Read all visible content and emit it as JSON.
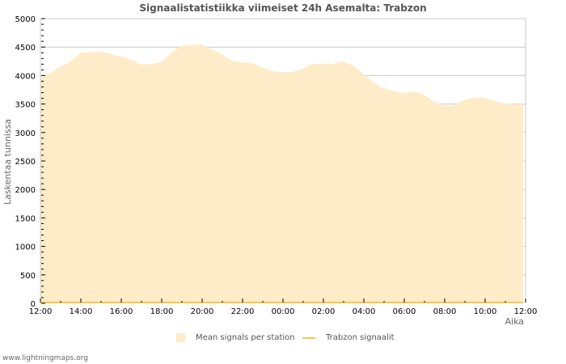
{
  "title": "Signaalistatistiikka viimeiset 24h Asemalta: Trabzon",
  "footer": "www.lightningmaps.org",
  "colors": {
    "area_fill": "#feebc8",
    "station_line": "#f2c94c",
    "grid": "#c8c8c8",
    "axis": "#c8c8c8"
  },
  "legend": [
    {
      "label": "Mean signals per station",
      "type": "area"
    },
    {
      "label": "Trabzon signaalit",
      "type": "line"
    }
  ],
  "chart_data": {
    "type": "area",
    "title": "Signaalistatistiikka viimeiset 24h Asemalta: Trabzon",
    "xlabel": "Aika",
    "ylabel": "Laskentaa tunnissa",
    "ylim": [
      0,
      5000
    ],
    "yticks": [
      0,
      500,
      1000,
      1500,
      2000,
      2500,
      3000,
      3500,
      4000,
      4500,
      5000
    ],
    "xticks": [
      "12:00",
      "14:00",
      "16:00",
      "18:00",
      "20:00",
      "22:00",
      "00:00",
      "02:00",
      "04:00",
      "06:00",
      "08:00",
      "10:00",
      "12:00"
    ],
    "grid": true,
    "legend_position": "bottom",
    "x": [
      "12:00",
      "12:30",
      "13:00",
      "13:30",
      "14:00",
      "14:30",
      "15:00",
      "15:30",
      "16:00",
      "16:30",
      "17:00",
      "17:30",
      "18:00",
      "18:30",
      "19:00",
      "19:30",
      "20:00",
      "20:30",
      "21:00",
      "21:30",
      "22:00",
      "22:30",
      "23:00",
      "23:30",
      "00:00",
      "00:30",
      "01:00",
      "01:30",
      "02:00",
      "02:30",
      "03:00",
      "03:30",
      "04:00",
      "04:30",
      "05:00",
      "05:30",
      "06:00",
      "06:30",
      "07:00",
      "07:30",
      "08:00",
      "08:30",
      "09:00",
      "09:30",
      "10:00",
      "10:30",
      "11:00",
      "11:30",
      "12:00"
    ],
    "series": [
      {
        "name": "Mean signals per station",
        "type": "area",
        "values": [
          3960,
          4050,
          4150,
          4250,
          4400,
          4410,
          4420,
          4380,
          4330,
          4280,
          4190,
          4200,
          4240,
          4400,
          4520,
          4530,
          4550,
          4460,
          4380,
          4260,
          4230,
          4220,
          4150,
          4080,
          4060,
          4060,
          4120,
          4200,
          4210,
          4200,
          4250,
          4180,
          4050,
          3900,
          3780,
          3740,
          3690,
          3720,
          3680,
          3560,
          3480,
          3470,
          3560,
          3610,
          3620,
          3560,
          3510,
          3500,
          3500
        ]
      },
      {
        "name": "Trabzon signaalit",
        "type": "line",
        "values": [
          0,
          0,
          0,
          0,
          0,
          0,
          0,
          0,
          0,
          0,
          0,
          0,
          0,
          0,
          0,
          0,
          0,
          0,
          0,
          0,
          0,
          0,
          0,
          0,
          0,
          0,
          0,
          0,
          0,
          0,
          0,
          0,
          0,
          0,
          0,
          0,
          0,
          0,
          0,
          0,
          0,
          0,
          0,
          0,
          0,
          0,
          0,
          0,
          0
        ]
      }
    ]
  }
}
